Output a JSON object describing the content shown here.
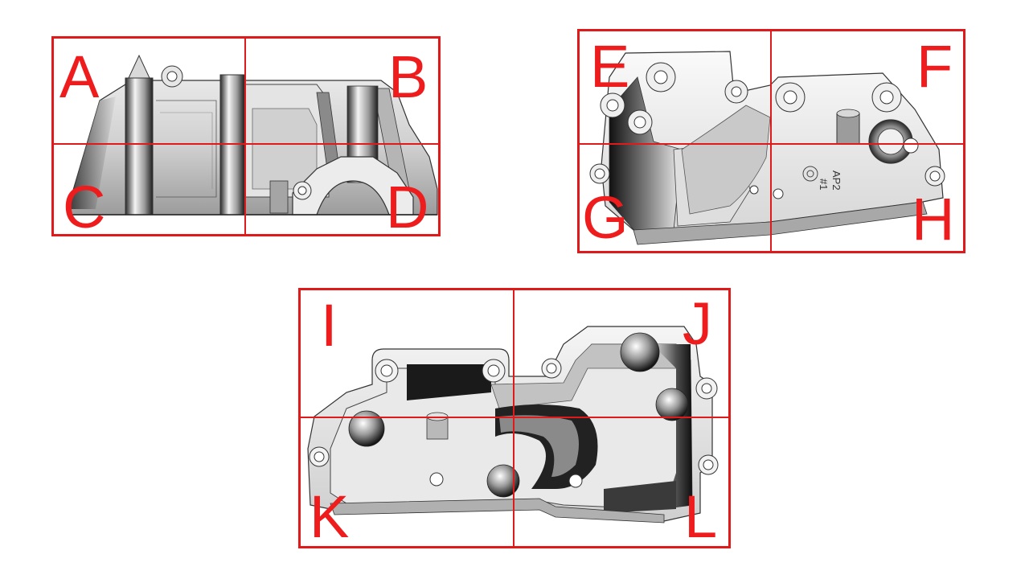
{
  "panels": [
    {
      "name": "view-side",
      "labels": [
        "A",
        "B",
        "C",
        "D"
      ]
    },
    {
      "name": "view-top",
      "labels": [
        "E",
        "F",
        "G",
        "H"
      ],
      "part_marking": [
        "AP2",
        "#1"
      ]
    },
    {
      "name": "view-bottom",
      "labels": [
        "I",
        "J",
        "K",
        "L"
      ]
    }
  ],
  "colors": {
    "grid": "#e01a1a",
    "letters": "#ee1c1c",
    "part_light": "#f2f2f2",
    "part_mid": "#bdbdbd",
    "part_dark": "#1c1c1c"
  }
}
